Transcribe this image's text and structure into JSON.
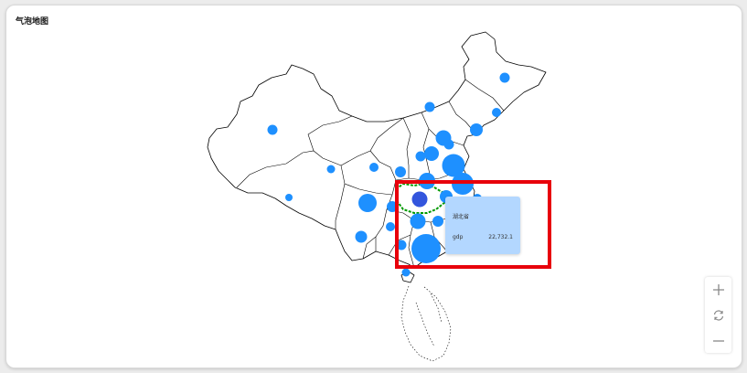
{
  "title": "气泡地图",
  "tooltip": {
    "province": "湖北省",
    "metric": "gdp",
    "value": "22,732.1"
  },
  "map_data": {
    "type": "bubble-map",
    "region": "China",
    "metric": "gdp",
    "highlighted": {
      "province": "湖北省",
      "gdp": 22732.1
    }
  },
  "colors": {
    "bubble": "#1e90ff",
    "bubble_active": "#3355dd",
    "outline": "#000000",
    "active_outline": "#009900",
    "highlight_box": "#e8000b",
    "tooltip_bg": "#b3d7ff"
  },
  "icons": {
    "zoom_in": "plus-icon",
    "reset": "refresh-icon",
    "zoom_out": "minus-icon"
  }
}
